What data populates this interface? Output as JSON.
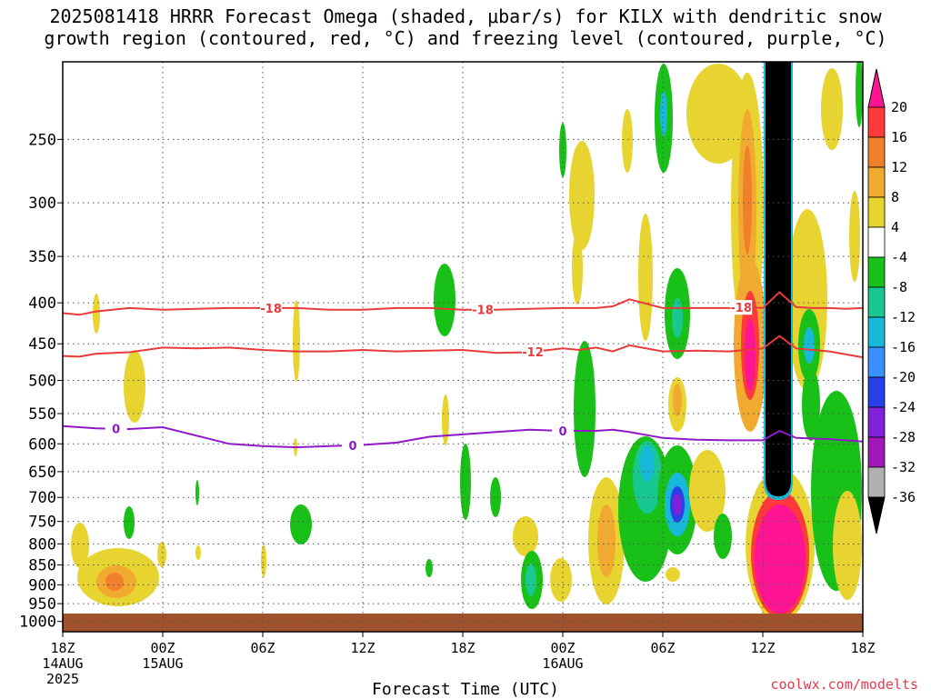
{
  "title_line1": "2025081418 HRRR Forecast Omega (shaded, μbar/s) for KILX with dendritic snow",
  "title_line2": "growth region (contoured, red, °C) and freezing level (contoured, purple, °C)",
  "credit": "coolwx.com/modelts",
  "chart_data": {
    "type": "heatmap",
    "title": "2025081418 HRRR Forecast Omega (shaded, μbar/s) for KILX with dendritic snow growth region (contoured, red, °C) and freezing level (contoured, purple, °C)",
    "xlabel": "Forecast Time (UTC)",
    "ylabel": "",
    "x_range_hours": [
      0,
      48
    ],
    "y_range_hPa": [
      1030,
      200
    ],
    "y_scale": "log",
    "grid": true,
    "y_ticks": [
      250,
      300,
      350,
      400,
      450,
      500,
      550,
      600,
      650,
      700,
      750,
      800,
      850,
      900,
      950,
      1000
    ],
    "x_ticks": [
      {
        "h": 0,
        "lines": [
          "18Z",
          "14AUG",
          "2025"
        ]
      },
      {
        "h": 6,
        "lines": [
          "00Z",
          "15AUG"
        ]
      },
      {
        "h": 12,
        "lines": [
          "06Z"
        ]
      },
      {
        "h": 18,
        "lines": [
          "12Z"
        ]
      },
      {
        "h": 24,
        "lines": [
          "18Z"
        ]
      },
      {
        "h": 30,
        "lines": [
          "00Z",
          "16AUG"
        ]
      },
      {
        "h": 36,
        "lines": [
          "06Z"
        ]
      },
      {
        "h": 42,
        "lines": [
          "12Z"
        ]
      },
      {
        "h": 48,
        "lines": [
          "18Z"
        ]
      }
    ],
    "colorbar": {
      "levels": [
        -36,
        -32,
        -28,
        -24,
        -20,
        -16,
        -12,
        -8,
        -4,
        4,
        8,
        12,
        16,
        20
      ],
      "labels": [
        "20",
        "16",
        "12",
        "8",
        "4",
        "-4",
        "-8",
        "-12",
        "-16",
        "-20",
        "-24",
        "-28",
        "-32",
        "-36"
      ],
      "colors_top_to_bottom": [
        "#ff1493",
        "#ff3a3a",
        "#f0802a",
        "#f0aa30",
        "#e8d430",
        "#ffffff",
        "#18c018",
        "#18c890",
        "#18b8d8",
        "#3a90ff",
        "#2840e8",
        "#8020d8",
        "#a018b8",
        "#b0b0b0",
        "#000000"
      ]
    },
    "contours": [
      {
        "label": "-18",
        "color": "#e83a3a",
        "x": [
          0,
          1,
          2,
          3,
          4,
          6,
          8,
          10,
          12,
          14,
          16,
          18,
          20,
          22,
          24,
          26,
          28,
          30,
          32,
          33,
          34,
          36,
          38,
          40,
          41,
          42,
          43,
          44,
          45,
          46,
          47,
          48
        ],
        "y": [
          412,
          414,
          410,
          408,
          406,
          408,
          407,
          406,
          406,
          406,
          408,
          408,
          406,
          406,
          408,
          408,
          407,
          406,
          406,
          404,
          396,
          406,
          406,
          406,
          405,
          406,
          388,
          405,
          406,
          406,
          407,
          406
        ],
        "labels_at_h": [
          12.5,
          25.2,
          40.7
        ]
      },
      {
        "label": "-12",
        "color": "#e83a3a",
        "x": [
          0,
          1,
          2,
          4,
          6,
          8,
          10,
          12,
          14,
          16,
          18,
          20,
          22,
          24,
          26,
          28,
          30,
          31,
          32,
          33,
          34,
          36,
          38,
          40,
          42,
          43,
          44,
          46,
          48
        ],
        "y": [
          466,
          467,
          463,
          461,
          455,
          456,
          455,
          458,
          460,
          460,
          458,
          460,
          459,
          458,
          462,
          461,
          456,
          458,
          455,
          460,
          452,
          460,
          459,
          460,
          456,
          440,
          456,
          460,
          468
        ],
        "labels_at_h": [
          28.2
        ]
      },
      {
        "label": "0",
        "color": "#9018c8",
        "x": [
          0,
          2,
          4,
          6,
          8,
          10,
          12,
          14,
          16,
          18,
          20,
          22,
          24,
          26,
          28,
          30,
          32,
          33,
          34,
          36,
          38,
          40,
          42,
          43,
          44,
          46,
          48
        ],
        "y": [
          570,
          574,
          575,
          572,
          586,
          600,
          604,
          606,
          604,
          602,
          598,
          588,
          584,
          580,
          576,
          578,
          578,
          576,
          580,
          590,
          593,
          594,
          594,
          578,
          590,
          592,
          596
        ],
        "labels_at_h": [
          3.2,
          17.4,
          30
        ]
      }
    ]
  }
}
